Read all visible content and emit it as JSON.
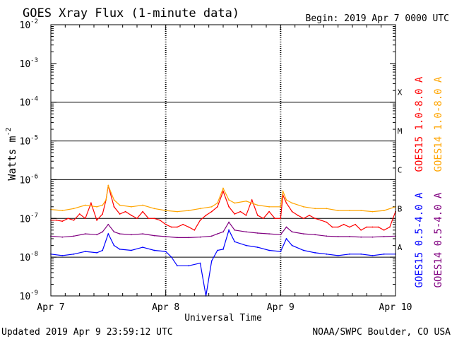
{
  "chart_data": {
    "type": "line",
    "title": "GOES Xray Flux (1-minute data)",
    "begin_label": "Begin:  2019 Apr 7 0000 UTC",
    "ylabel_main": "Watts m",
    "ylabel_exp": "-2",
    "xlabel": "Universal Time",
    "y_scale": "log",
    "ylim": [
      1e-09,
      0.01
    ],
    "y_ticks": [
      {
        "base": "10",
        "exp": "-9",
        "value": 1e-09
      },
      {
        "base": "10",
        "exp": "-8",
        "value": 1e-08
      },
      {
        "base": "10",
        "exp": "-7",
        "value": 1e-07
      },
      {
        "base": "10",
        "exp": "-6",
        "value": 1e-06
      },
      {
        "base": "10",
        "exp": "-5",
        "value": 1e-05
      },
      {
        "base": "10",
        "exp": "-4",
        "value": 0.0001
      },
      {
        "base": "10",
        "exp": "-3",
        "value": 0.001
      },
      {
        "base": "10",
        "exp": "-2",
        "value": 0.01
      }
    ],
    "x_ticks": [
      "Apr 7",
      "Apr 8",
      "Apr 9",
      "Apr 10"
    ],
    "xlim_days": [
      0,
      3
    ],
    "flare_classes": [
      {
        "label": "X",
        "value": 0.0001
      },
      {
        "label": "M",
        "value": 1e-05
      },
      {
        "label": "C",
        "value": 1e-06
      },
      {
        "label": "B",
        "value": 1e-07
      },
      {
        "label": "A",
        "value": 1e-08
      }
    ],
    "grid": true,
    "series": [
      {
        "name": "GOES15 1.0-8.0 A",
        "color": "#ff0000",
        "x": [
          0,
          0.05,
          0.1,
          0.15,
          0.2,
          0.25,
          0.3,
          0.35,
          0.4,
          0.45,
          0.48,
          0.5,
          0.55,
          0.6,
          0.65,
          0.7,
          0.75,
          0.8,
          0.85,
          0.9,
          0.95,
          1.0,
          1.05,
          1.1,
          1.15,
          1.2,
          1.25,
          1.3,
          1.35,
          1.4,
          1.45,
          1.5,
          1.55,
          1.6,
          1.65,
          1.7,
          1.75,
          1.8,
          1.85,
          1.9,
          1.95,
          2.0,
          2.02,
          2.05,
          2.1,
          2.15,
          2.2,
          2.25,
          2.3,
          2.35,
          2.4,
          2.45,
          2.5,
          2.55,
          2.6,
          2.65,
          2.7,
          2.75,
          2.8,
          2.85,
          2.9,
          2.95,
          3.0
        ],
        "y": [
          9e-08,
          9e-08,
          8.5e-08,
          1e-07,
          9e-08,
          1.3e-07,
          1e-07,
          2.5e-07,
          9e-08,
          1.3e-07,
          3e-07,
          7e-07,
          2e-07,
          1.3e-07,
          1.5e-07,
          1.2e-07,
          1e-07,
          1.5e-07,
          1e-07,
          1e-07,
          9e-08,
          7e-08,
          6e-08,
          6e-08,
          7e-08,
          6e-08,
          5e-08,
          9e-08,
          1.2e-07,
          1.5e-07,
          2e-07,
          5e-07,
          2e-07,
          1.3e-07,
          1.5e-07,
          1.2e-07,
          3e-07,
          1.2e-07,
          1e-07,
          1.5e-07,
          1e-07,
          1e-07,
          4e-07,
          2.5e-07,
          1.5e-07,
          1.2e-07,
          1e-07,
          1.2e-07,
          1e-07,
          9e-08,
          8e-08,
          6e-08,
          6e-08,
          7e-08,
          6e-08,
          7e-08,
          5e-08,
          6e-08,
          6e-08,
          6e-08,
          5e-08,
          6e-08,
          1.5e-07
        ]
      },
      {
        "name": "GOES14 1.0-8.0 A",
        "color": "#ffa500",
        "x": [
          0,
          0.1,
          0.2,
          0.3,
          0.4,
          0.45,
          0.48,
          0.5,
          0.55,
          0.6,
          0.7,
          0.8,
          0.9,
          1.0,
          1.1,
          1.2,
          1.3,
          1.4,
          1.45,
          1.5,
          1.55,
          1.6,
          1.7,
          1.8,
          1.9,
          2.0,
          2.02,
          2.05,
          2.1,
          2.2,
          2.3,
          2.4,
          2.5,
          2.6,
          2.7,
          2.8,
          2.9,
          3.0
        ],
        "y": [
          1.7e-07,
          1.6e-07,
          1.8e-07,
          2.2e-07,
          2e-07,
          2.2e-07,
          3e-07,
          7e-07,
          3e-07,
          2.2e-07,
          2e-07,
          2.2e-07,
          1.8e-07,
          1.6e-07,
          1.5e-07,
          1.6e-07,
          1.8e-07,
          2e-07,
          2.5e-07,
          6e-07,
          3e-07,
          2.5e-07,
          2.8e-07,
          2.2e-07,
          2e-07,
          2e-07,
          5e-07,
          3e-07,
          2.5e-07,
          2e-07,
          1.8e-07,
          1.8e-07,
          1.6e-07,
          1.6e-07,
          1.6e-07,
          1.5e-07,
          1.6e-07,
          2e-07
        ]
      },
      {
        "name": "GOES15 0.5-4.0 A",
        "color": "#0000ff",
        "x": [
          0,
          0.1,
          0.2,
          0.3,
          0.4,
          0.45,
          0.5,
          0.55,
          0.6,
          0.7,
          0.8,
          0.9,
          1.0,
          1.05,
          1.1,
          1.2,
          1.3,
          1.35,
          1.4,
          1.45,
          1.5,
          1.55,
          1.6,
          1.7,
          1.8,
          1.9,
          2.0,
          2.05,
          2.1,
          2.2,
          2.3,
          2.4,
          2.5,
          2.6,
          2.7,
          2.8,
          2.9,
          3.0
        ],
        "y": [
          1.2e-08,
          1.1e-08,
          1.2e-08,
          1.4e-08,
          1.3e-08,
          1.5e-08,
          4e-08,
          2e-08,
          1.6e-08,
          1.5e-08,
          1.8e-08,
          1.5e-08,
          1.4e-08,
          1e-08,
          6e-09,
          6e-09,
          7e-09,
          1e-09,
          8e-09,
          1.5e-08,
          1.6e-08,
          5e-08,
          2.5e-08,
          2e-08,
          1.8e-08,
          1.5e-08,
          1.4e-08,
          3e-08,
          2e-08,
          1.5e-08,
          1.3e-08,
          1.2e-08,
          1.1e-08,
          1.2e-08,
          1.2e-08,
          1.1e-08,
          1.2e-08,
          1.2e-08
        ]
      },
      {
        "name": "GOES14 0.5-4.0 A",
        "color": "#800080",
        "x": [
          0,
          0.1,
          0.2,
          0.3,
          0.4,
          0.45,
          0.5,
          0.55,
          0.6,
          0.7,
          0.8,
          0.9,
          1.0,
          1.1,
          1.2,
          1.3,
          1.4,
          1.45,
          1.5,
          1.55,
          1.6,
          1.7,
          1.8,
          1.9,
          2.0,
          2.05,
          2.1,
          2.2,
          2.3,
          2.4,
          2.5,
          2.6,
          2.7,
          2.8,
          2.9,
          3.0
        ],
        "y": [
          3.5e-08,
          3.3e-08,
          3.5e-08,
          4e-08,
          3.8e-08,
          4.5e-08,
          7e-08,
          4.5e-08,
          4e-08,
          3.8e-08,
          4e-08,
          3.6e-08,
          3.4e-08,
          3.2e-08,
          3.2e-08,
          3.3e-08,
          3.5e-08,
          4e-08,
          4.5e-08,
          8e-08,
          5e-08,
          4.5e-08,
          4.2e-08,
          4e-08,
          3.8e-08,
          6e-08,
          4.5e-08,
          4e-08,
          3.8e-08,
          3.5e-08,
          3.4e-08,
          3.4e-08,
          3.3e-08,
          3.3e-08,
          3.4e-08,
          3.5e-08
        ]
      }
    ]
  },
  "footer": {
    "updated": "Updated 2019 Apr  9 23:59:12 UTC",
    "credit": "NOAA/SWPC Boulder, CO USA"
  }
}
